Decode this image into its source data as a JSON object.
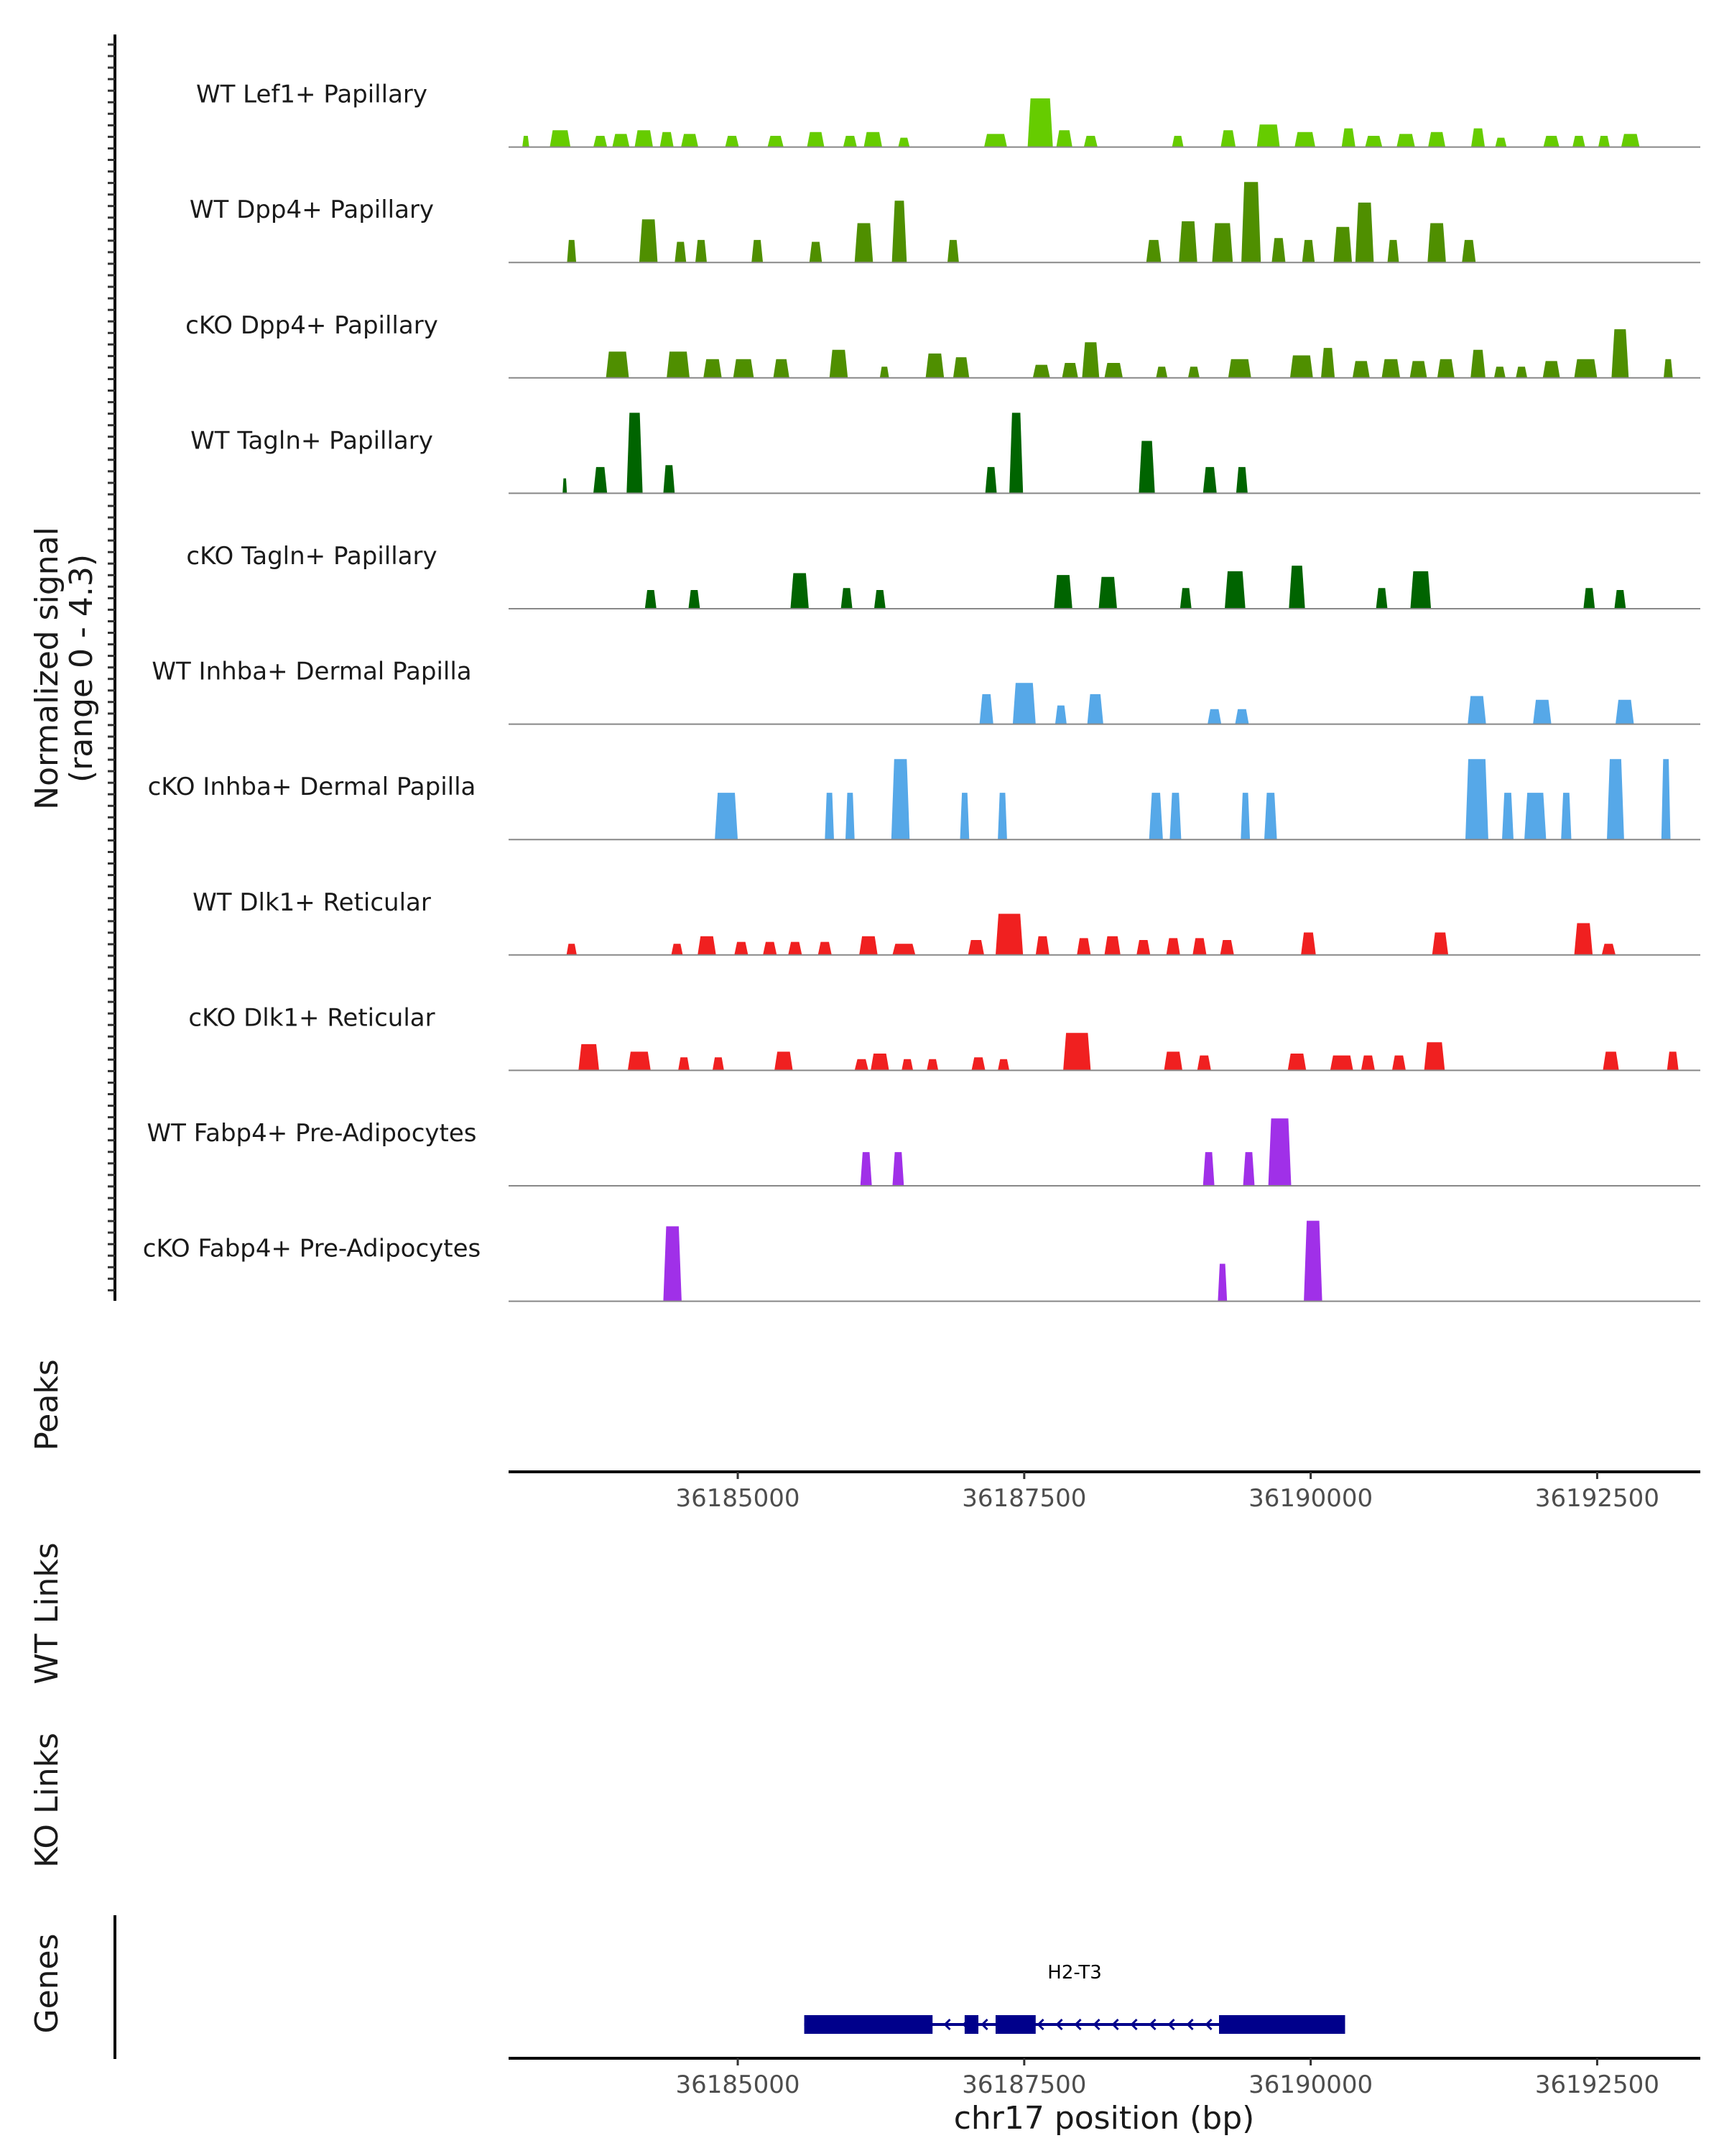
{
  "chart_data": {
    "type": "area",
    "ylabel_line1": "Normalized signal",
    "ylabel_line2": "(range 0 - 4.3)",
    "y_range": [
      0,
      4.3
    ],
    "xlabel": "chr17 position (bp)",
    "xlim": [
      36183000,
      36193400
    ],
    "x_ticks": [
      36185000,
      36187500,
      36190000,
      36192500
    ],
    "x_tick_labels": [
      "36185000",
      "36187500",
      "36190000",
      "36192500"
    ],
    "panel_labels": {
      "peaks": "Peaks",
      "wt_links": "WT Links",
      "ko_links": "KO Links",
      "genes": "Genes"
    },
    "genes": [
      {
        "name": "H2-T3",
        "start": 36185580,
        "end": 36190300,
        "strand": "-",
        "exons": [
          [
            36185580,
            36186700
          ],
          [
            36186980,
            36187100
          ],
          [
            36187250,
            36187600
          ],
          [
            36189200,
            36190300
          ]
        ]
      }
    ],
    "series": [
      {
        "name": "WT Lef1+ Papillary",
        "color": "#66CC00",
        "peaks": [
          [
            36183150,
            60,
            0.6
          ],
          [
            36183450,
            180,
            0.9
          ],
          [
            36183800,
            120,
            0.6
          ],
          [
            36183980,
            150,
            0.7
          ],
          [
            36184180,
            160,
            0.9
          ],
          [
            36184380,
            120,
            0.8
          ],
          [
            36184580,
            150,
            0.7
          ],
          [
            36184950,
            120,
            0.6
          ],
          [
            36185330,
            140,
            0.6
          ],
          [
            36185680,
            150,
            0.8
          ],
          [
            36185980,
            120,
            0.6
          ],
          [
            36186180,
            160,
            0.8
          ],
          [
            36186450,
            100,
            0.5
          ],
          [
            36187250,
            200,
            0.7
          ],
          [
            36187640,
            220,
            2.6
          ],
          [
            36187850,
            140,
            0.9
          ],
          [
            36188080,
            120,
            0.6
          ],
          [
            36188840,
            100,
            0.6
          ],
          [
            36189280,
            130,
            0.9
          ],
          [
            36189630,
            200,
            1.2
          ],
          [
            36189950,
            180,
            0.8
          ],
          [
            36190330,
            120,
            1.0
          ],
          [
            36190550,
            150,
            0.6
          ],
          [
            36190830,
            160,
            0.7
          ],
          [
            36191100,
            150,
            0.8
          ],
          [
            36191460,
            120,
            1.0
          ],
          [
            36191660,
            100,
            0.5
          ],
          [
            36192100,
            140,
            0.6
          ],
          [
            36192340,
            110,
            0.6
          ],
          [
            36192560,
            100,
            0.6
          ],
          [
            36192790,
            160,
            0.7
          ]
        ]
      },
      {
        "name": "WT Dpp4+ Papillary",
        "color": "#4F8F00",
        "peaks": [
          [
            36183550,
            80,
            1.2
          ],
          [
            36184220,
            160,
            2.3
          ],
          [
            36184500,
            100,
            1.1
          ],
          [
            36184680,
            100,
            1.2
          ],
          [
            36185170,
            100,
            1.2
          ],
          [
            36185680,
            110,
            1.1
          ],
          [
            36186100,
            160,
            2.1
          ],
          [
            36186410,
            130,
            3.3
          ],
          [
            36186880,
            100,
            1.2
          ],
          [
            36188630,
            130,
            1.2
          ],
          [
            36188930,
            160,
            2.2
          ],
          [
            36189230,
            180,
            2.1
          ],
          [
            36189480,
            170,
            4.3
          ],
          [
            36189720,
            120,
            1.3
          ],
          [
            36189980,
            110,
            1.2
          ],
          [
            36190280,
            160,
            1.9
          ],
          [
            36190470,
            160,
            3.2
          ],
          [
            36190720,
            100,
            1.2
          ],
          [
            36191100,
            160,
            2.1
          ],
          [
            36191380,
            120,
            1.2
          ]
        ]
      },
      {
        "name": "cKO Dpp4+ Papillary",
        "color": "#4F8F00",
        "peaks": [
          [
            36183950,
            200,
            1.4
          ],
          [
            36184480,
            200,
            1.4
          ],
          [
            36184780,
            160,
            1.0
          ],
          [
            36185050,
            180,
            1.0
          ],
          [
            36185380,
            140,
            1.0
          ],
          [
            36185880,
            160,
            1.5
          ],
          [
            36186280,
            80,
            0.6
          ],
          [
            36186720,
            160,
            1.3
          ],
          [
            36186950,
            140,
            1.1
          ],
          [
            36187650,
            150,
            0.7
          ],
          [
            36187900,
            140,
            0.8
          ],
          [
            36188080,
            150,
            1.9
          ],
          [
            36188280,
            160,
            0.8
          ],
          [
            36188700,
            100,
            0.6
          ],
          [
            36188980,
            100,
            0.6
          ],
          [
            36189380,
            200,
            1.0
          ],
          [
            36189920,
            200,
            1.2
          ],
          [
            36190150,
            120,
            1.6
          ],
          [
            36190440,
            150,
            0.9
          ],
          [
            36190700,
            160,
            1.0
          ],
          [
            36190940,
            150,
            0.9
          ],
          [
            36191180,
            150,
            1.0
          ],
          [
            36191460,
            130,
            1.5
          ],
          [
            36191650,
            100,
            0.6
          ],
          [
            36191840,
            100,
            0.6
          ],
          [
            36192100,
            150,
            0.9
          ],
          [
            36192400,
            200,
            1.0
          ],
          [
            36192700,
            150,
            2.6
          ],
          [
            36193120,
            80,
            1.0
          ]
        ]
      },
      {
        "name": "WT Tagln+ Papillary",
        "color": "#006400",
        "peaks": [
          [
            36183490,
            20,
            0.8
          ],
          [
            36183800,
            120,
            1.4
          ],
          [
            36184100,
            140,
            4.3
          ],
          [
            36184400,
            100,
            1.5
          ],
          [
            36187210,
            100,
            1.4
          ],
          [
            36187430,
            120,
            4.3
          ],
          [
            36188570,
            140,
            2.8
          ],
          [
            36189120,
            120,
            1.4
          ],
          [
            36189400,
            100,
            1.4
          ]
        ]
      },
      {
        "name": "cKO Tagln+ Papillary",
        "color": "#006400",
        "peaks": [
          [
            36184240,
            100,
            1.0
          ],
          [
            36184620,
            100,
            1.0
          ],
          [
            36185540,
            160,
            1.9
          ],
          [
            36185950,
            100,
            1.1
          ],
          [
            36186240,
            100,
            1.0
          ],
          [
            36187840,
            160,
            1.8
          ],
          [
            36188230,
            160,
            1.7
          ],
          [
            36188910,
            100,
            1.1
          ],
          [
            36189340,
            180,
            2.0
          ],
          [
            36189880,
            140,
            2.3
          ],
          [
            36190620,
            100,
            1.1
          ],
          [
            36190960,
            180,
            2.0
          ],
          [
            36192430,
            100,
            1.1
          ],
          [
            36192700,
            100,
            1.0
          ]
        ]
      },
      {
        "name": "WT Inhba+ Dermal Papilla",
        "color": "#56A8E8",
        "peaks": [
          [
            36187170,
            120,
            1.6
          ],
          [
            36187500,
            200,
            2.2
          ],
          [
            36187820,
            100,
            1.0
          ],
          [
            36188120,
            140,
            1.6
          ],
          [
            36189160,
            120,
            0.8
          ],
          [
            36189400,
            120,
            0.8
          ],
          [
            36191450,
            160,
            1.5
          ],
          [
            36192020,
            160,
            1.3
          ],
          [
            36192740,
            160,
            1.3
          ]
        ]
      },
      {
        "name": "cKO Inhba+ Dermal Papilla",
        "color": "#56A8E8",
        "peaks": [
          [
            36184900,
            200,
            2.5
          ],
          [
            36185800,
            80,
            2.5
          ],
          [
            36185980,
            80,
            2.5
          ],
          [
            36186420,
            160,
            4.3
          ],
          [
            36186980,
            80,
            2.5
          ],
          [
            36187310,
            80,
            2.5
          ],
          [
            36188650,
            120,
            2.5
          ],
          [
            36188820,
            100,
            2.5
          ],
          [
            36189430,
            80,
            2.5
          ],
          [
            36189650,
            110,
            2.5
          ],
          [
            36191450,
            200,
            4.3
          ],
          [
            36191720,
            100,
            2.5
          ],
          [
            36191960,
            190,
            2.5
          ],
          [
            36192230,
            90,
            2.5
          ],
          [
            36192660,
            150,
            4.3
          ],
          [
            36193100,
            80,
            4.3
          ]
        ]
      },
      {
        "name": "WT Dlk1+ Reticular",
        "color": "#F02020",
        "peaks": [
          [
            36183550,
            90,
            0.6
          ],
          [
            36184470,
            100,
            0.6
          ],
          [
            36184730,
            160,
            1.0
          ],
          [
            36185030,
            120,
            0.7
          ],
          [
            36185280,
            120,
            0.7
          ],
          [
            36185500,
            120,
            0.7
          ],
          [
            36185760,
            120,
            0.7
          ],
          [
            36186140,
            160,
            1.0
          ],
          [
            36186450,
            200,
            0.6
          ],
          [
            36187080,
            140,
            0.8
          ],
          [
            36187370,
            240,
            2.2
          ],
          [
            36187660,
            120,
            1.0
          ],
          [
            36188020,
            120,
            0.9
          ],
          [
            36188270,
            140,
            1.0
          ],
          [
            36188540,
            120,
            0.8
          ],
          [
            36188800,
            120,
            0.9
          ],
          [
            36189030,
            120,
            0.9
          ],
          [
            36189270,
            120,
            0.8
          ],
          [
            36189980,
            130,
            1.2
          ],
          [
            36191130,
            140,
            1.2
          ],
          [
            36192380,
            160,
            1.7
          ],
          [
            36192600,
            120,
            0.6
          ]
        ]
      },
      {
        "name": "cKO Dlk1+ Reticular",
        "color": "#F02020",
        "peaks": [
          [
            36183700,
            180,
            1.4
          ],
          [
            36184140,
            200,
            1.0
          ],
          [
            36184530,
            100,
            0.7
          ],
          [
            36184830,
            100,
            0.7
          ],
          [
            36185400,
            160,
            1.0
          ],
          [
            36186080,
            120,
            0.6
          ],
          [
            36186240,
            160,
            0.9
          ],
          [
            36186480,
            100,
            0.6
          ],
          [
            36186700,
            100,
            0.6
          ],
          [
            36187100,
            120,
            0.7
          ],
          [
            36187320,
            100,
            0.6
          ],
          [
            36187960,
            240,
            2.0
          ],
          [
            36188800,
            160,
            1.0
          ],
          [
            36189070,
            120,
            0.8
          ],
          [
            36189880,
            160,
            0.9
          ],
          [
            36190270,
            200,
            0.8
          ],
          [
            36190500,
            120,
            0.8
          ],
          [
            36190770,
            120,
            0.8
          ],
          [
            36191080,
            180,
            1.5
          ],
          [
            36192620,
            140,
            1.0
          ],
          [
            36193160,
            100,
            1.0
          ]
        ]
      },
      {
        "name": "WT Fabp4+ Pre-Adipocytes",
        "color": "#A030E8",
        "peaks": [
          [
            36186120,
            100,
            1.8
          ],
          [
            36186400,
            100,
            1.8
          ],
          [
            36189110,
            100,
            1.8
          ],
          [
            36189460,
            100,
            1.8
          ],
          [
            36189730,
            200,
            3.6
          ]
        ]
      },
      {
        "name": "cKO Fabp4+ Pre-Adipocytes",
        "color": "#A030E8",
        "peaks": [
          [
            36184430,
            160,
            4.0
          ],
          [
            36189230,
            80,
            2.0
          ],
          [
            36190020,
            160,
            4.3
          ]
        ]
      }
    ]
  }
}
